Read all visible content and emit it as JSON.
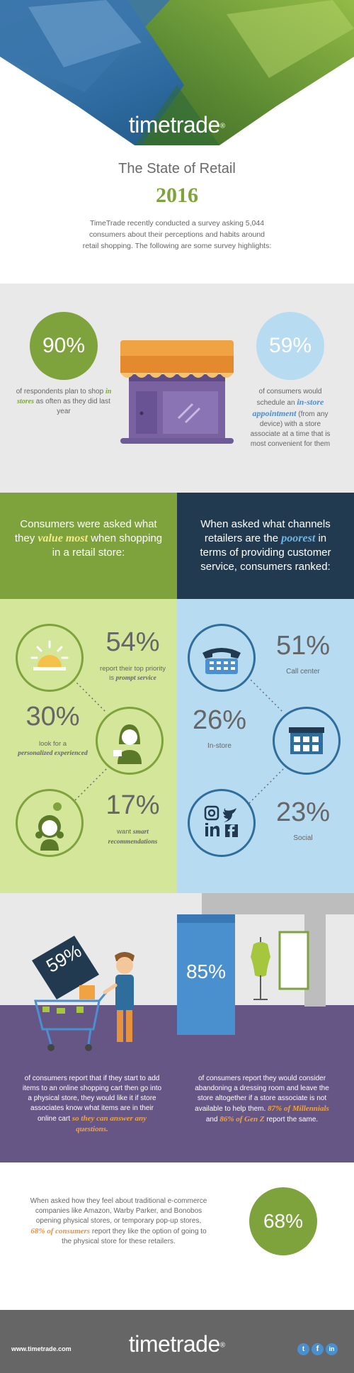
{
  "colors": {
    "green": "#7fa33c",
    "light_green": "#d3e69a",
    "light_blue": "#b7dbf0",
    "navy": "#223a4f",
    "purple": "#665685",
    "orange": "#e7923d",
    "blue": "#4a8fce",
    "gray": "#e9e9ea",
    "footer": "#666666"
  },
  "header": {
    "brand": "timetrade",
    "registered": "®"
  },
  "intro": {
    "title": "The State of Retail",
    "year": "2016",
    "body": "TimeTrade recently conducted a survey asking 5,044 consumers about their perceptions and habits around retail shopping. The following are some survey highlights:"
  },
  "stats_top": {
    "left": {
      "value": "90%",
      "pre": "of respondents plan to shop",
      "em": "in stores",
      "post": "as often as they did last year"
    },
    "right": {
      "value": "59%",
      "pre": "of consumers would schedule an",
      "em": "in-store appointment",
      "post": "(from any device) with a store associate at a time that is most convenient for them"
    },
    "store_icon": "storefront-icon"
  },
  "questions": {
    "left": {
      "pre": "Consumers were asked what they",
      "em": "value most",
      "post": "when shopping in a retail store:"
    },
    "right": {
      "pre": "When asked what channels retailers are the",
      "em": "poorest",
      "post": "in terms of providing customer service, consumers ranked:"
    }
  },
  "values": [
    {
      "pct": "54%",
      "line1": "report their top priority",
      "line2": "is",
      "em": "prompt service",
      "icon": "service-bell-icon"
    },
    {
      "pct": "30%",
      "line1": "look for a",
      "em": "personalized experienced",
      "icon": "associate-icon"
    },
    {
      "pct": "17%",
      "line1": "want",
      "em": "smart recommendations",
      "icon": "smart-assistant-icon"
    }
  ],
  "channels": [
    {
      "pct": "51%",
      "label": "Call center",
      "icon": "telephone-icon"
    },
    {
      "pct": "26%",
      "label": "In-store",
      "icon": "store-building-icon"
    },
    {
      "pct": "23%",
      "label": "Social",
      "icon": "social-media-icon"
    }
  ],
  "scene": {
    "left": {
      "pct": "59%",
      "text": "of consumers report that if they start to add items to an online shopping cart then go into a physical store, they would like it if store associates know what items are in their online cart",
      "em": "so they can answer any questions."
    },
    "right": {
      "pct": "85%",
      "text": "of consumers report they would consider abandoning a dressing room and leave the store altogether if a store associate is not available to help them.",
      "em1": "87% of Millennials",
      "mid": "and",
      "em2": "86% of Gen Z",
      "post": "report the same."
    }
  },
  "popup": {
    "pre": "When asked how they feel about traditional e-commerce companies like Amazon, Warby Parker, and Bonobos opening physical stores, or temporary pop-up stores,",
    "em": "68% of consumers",
    "post": "report they like the option of going to the physical store for these retailers.",
    "pct": "68%"
  },
  "footer": {
    "url": "www.timetrade.com",
    "brand": "timetrade",
    "registered": "®",
    "social": [
      "twitter-icon",
      "facebook-icon",
      "linkedin-icon"
    ]
  }
}
